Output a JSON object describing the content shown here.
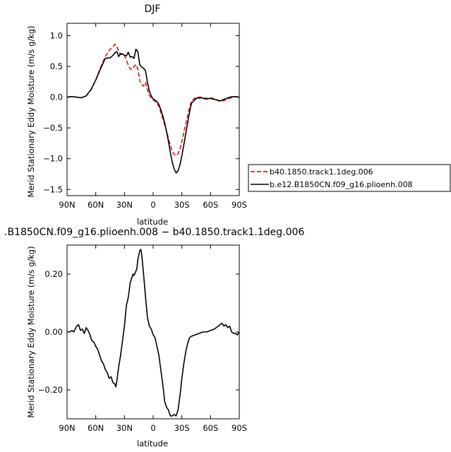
{
  "chart_data": [
    {
      "type": "line",
      "title": "DJF",
      "xlabel": "latitude",
      "ylabel": "Merid Stationary Eddy Moisture (m/s g/kg)",
      "xlim": [
        90,
        -90
      ],
      "ylim": [
        -1.6,
        1.2
      ],
      "x_ticks": [
        90,
        60,
        30,
        0,
        -30,
        -60,
        -90
      ],
      "x_tick_labels": [
        "90N",
        "60N",
        "30N",
        "0",
        "30S",
        "60S",
        "90S"
      ],
      "y_ticks": [
        1.0,
        0.5,
        0.0,
        -0.5,
        -1.0,
        -1.5
      ],
      "y_tick_labels": [
        "1.0",
        "0.5",
        "0.0",
        "−0.5",
        "−1.0",
        "−1.5"
      ],
      "legend_position": "right",
      "series": [
        {
          "name": "b40.1850.track1.1deg.006",
          "color": "#e01818",
          "dash": "dashed",
          "x": [
            90,
            85,
            80,
            75,
            70,
            65,
            60,
            55,
            50,
            45,
            42,
            40,
            38,
            36,
            34,
            32,
            30,
            28,
            26,
            24,
            22,
            20,
            18,
            16,
            14,
            12,
            10,
            8,
            6,
            4,
            2,
            0,
            -2,
            -4,
            -6,
            -8,
            -10,
            -12,
            -14,
            -16,
            -18,
            -20,
            -22,
            -24,
            -26,
            -28,
            -30,
            -32,
            -34,
            -36,
            -38,
            -40,
            -45,
            -50,
            -55,
            -60,
            -65,
            -70,
            -75,
            -80,
            -85,
            -90
          ],
          "values": [
            0.0,
            0.01,
            0.0,
            -0.01,
            0.02,
            0.12,
            0.28,
            0.48,
            0.66,
            0.78,
            0.82,
            0.86,
            0.83,
            0.74,
            0.69,
            0.7,
            0.68,
            0.6,
            0.52,
            0.46,
            0.45,
            0.5,
            0.53,
            0.45,
            0.27,
            0.2,
            0.18,
            0.24,
            0.12,
            0.03,
            -0.02,
            -0.04,
            -0.07,
            -0.1,
            -0.15,
            -0.25,
            -0.35,
            -0.45,
            -0.55,
            -0.67,
            -0.79,
            -0.88,
            -0.93,
            -0.95,
            -0.92,
            -0.84,
            -0.72,
            -0.58,
            -0.44,
            -0.3,
            -0.17,
            -0.06,
            0.0,
            0.0,
            -0.02,
            -0.01,
            -0.03,
            -0.07,
            -0.05,
            -0.02,
            0.01,
            0.0
          ]
        },
        {
          "name": "b.e12.B1850CN.f09_g16.plioenh.008",
          "color": "#000000",
          "dash": "solid",
          "x": [
            90,
            85,
            80,
            75,
            70,
            65,
            60,
            55,
            50,
            45,
            42,
            40,
            38,
            36,
            34,
            32,
            30,
            28,
            26,
            24,
            22,
            20,
            18,
            16,
            14,
            12,
            10,
            8,
            6,
            4,
            2,
            0,
            -2,
            -4,
            -6,
            -8,
            -10,
            -12,
            -14,
            -16,
            -18,
            -20,
            -22,
            -24,
            -26,
            -28,
            -30,
            -32,
            -34,
            -36,
            -38,
            -40,
            -45,
            -50,
            -55,
            -60,
            -65,
            -70,
            -75,
            -80,
            -85,
            -90
          ],
          "values": [
            0.0,
            0.01,
            0.0,
            -0.01,
            0.02,
            0.12,
            0.28,
            0.46,
            0.63,
            0.64,
            0.68,
            0.72,
            0.74,
            0.66,
            0.71,
            0.7,
            0.68,
            0.67,
            0.73,
            0.65,
            0.66,
            0.63,
            0.78,
            0.74,
            0.53,
            0.49,
            0.47,
            0.43,
            0.24,
            0.1,
            0.02,
            -0.03,
            -0.05,
            -0.07,
            -0.12,
            -0.2,
            -0.3,
            -0.42,
            -0.56,
            -0.72,
            -0.9,
            -1.06,
            -1.17,
            -1.23,
            -1.2,
            -1.1,
            -0.95,
            -0.78,
            -0.6,
            -0.42,
            -0.25,
            -0.1,
            -0.02,
            -0.01,
            -0.03,
            -0.02,
            -0.04,
            -0.06,
            -0.03,
            0.0,
            0.01,
            0.0
          ]
        }
      ]
    },
    {
      "type": "line",
      "title": ".B1850CN.f09_g16.plioenh.008 − b40.1850.track1.1deg.006",
      "xlabel": "latitude",
      "ylabel": "Merid Stationary Eddy Moisture (m/s g/kg)",
      "xlim": [
        90,
        -90
      ],
      "ylim": [
        -0.3,
        0.3
      ],
      "x_ticks": [
        90,
        60,
        30,
        0,
        -30,
        -60,
        -90
      ],
      "x_tick_labels": [
        "90N",
        "60N",
        "30N",
        "0",
        "30S",
        "60S",
        "90S"
      ],
      "y_ticks": [
        0.2,
        0.0,
        -0.2
      ],
      "y_tick_labels": [
        "0.20",
        "0.00",
        "−0.20"
      ],
      "series": [
        {
          "color": "#000000",
          "dash": "solid",
          "x": [
            90,
            87,
            85,
            83,
            80,
            78,
            76,
            74,
            72,
            70,
            68,
            66,
            64,
            62,
            60,
            58,
            56,
            54,
            52,
            50,
            48,
            46,
            44,
            42,
            40,
            39,
            38,
            36,
            34,
            32,
            30,
            28,
            26,
            24,
            22,
            21,
            20,
            18,
            17,
            16,
            14,
            13,
            12,
            10,
            8,
            6,
            4,
            2,
            0,
            -2,
            -4,
            -6,
            -8,
            -10,
            -12,
            -14,
            -16,
            -18,
            -20,
            -22,
            -24,
            -26,
            -28,
            -30,
            -32,
            -34,
            -36,
            -38,
            -40,
            -44,
            -48,
            -52,
            -56,
            -60,
            -64,
            -68,
            -72,
            -74,
            -76,
            -78,
            -80,
            -82,
            -84,
            -86,
            -88,
            -90
          ],
          "values": [
            0.0,
            0.0,
            0.005,
            0.0,
            0.02,
            0.025,
            0.005,
            0.01,
            -0.005,
            0.015,
            0.005,
            -0.01,
            -0.03,
            -0.035,
            -0.05,
            -0.06,
            -0.08,
            -0.1,
            -0.11,
            -0.13,
            -0.14,
            -0.16,
            -0.155,
            -0.175,
            -0.18,
            -0.19,
            -0.17,
            -0.12,
            -0.08,
            -0.03,
            0.02,
            0.09,
            0.12,
            0.17,
            0.19,
            0.2,
            0.195,
            0.21,
            0.22,
            0.25,
            0.28,
            0.285,
            0.27,
            0.2,
            0.12,
            0.05,
            0.02,
            0.01,
            -0.01,
            -0.02,
            -0.05,
            -0.08,
            -0.13,
            -0.18,
            -0.24,
            -0.26,
            -0.27,
            -0.29,
            -0.29,
            -0.285,
            -0.29,
            -0.27,
            -0.22,
            -0.16,
            -0.11,
            -0.07,
            -0.04,
            -0.02,
            -0.015,
            -0.01,
            -0.005,
            0.0,
            0.0,
            0.005,
            0.01,
            0.02,
            0.03,
            0.02,
            0.025,
            0.015,
            0.02,
            0.0,
            -0.005,
            -0.005,
            -0.01,
            0.0
          ]
        }
      ]
    }
  ]
}
